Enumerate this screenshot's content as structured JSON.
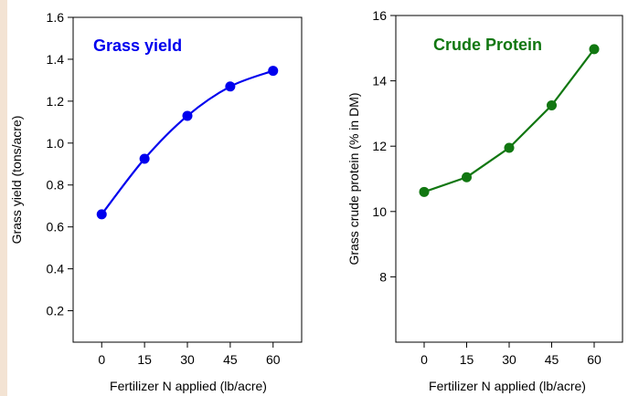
{
  "chart_data": [
    {
      "type": "line",
      "title": "Grass yield",
      "xlabel": "Fertilizer N applied (lb/acre)",
      "ylabel": "Grass yield (tons/acre)",
      "x": [
        0,
        15,
        30,
        45,
        60
      ],
      "series": [
        {
          "values": [
            0.66,
            0.925,
            1.13,
            1.27,
            1.345
          ]
        }
      ],
      "x_ticks": [
        "0",
        "15",
        "30",
        "45",
        "60"
      ],
      "xlim": [
        -10,
        70
      ],
      "y_ticks": [
        "0.2",
        "0.4",
        "0.6",
        "0.8",
        "1.0",
        "1.2",
        "1.4",
        "1.6"
      ],
      "ylim": [
        0.05,
        1.6
      ],
      "color": "#0000ee",
      "grid": false,
      "smooth": true
    },
    {
      "type": "line",
      "title": "Crude Protein",
      "xlabel": "Fertilizer N applied (lb/acre)",
      "ylabel": "Grass crude protein (% in DM)",
      "x": [
        0,
        15,
        30,
        45,
        60
      ],
      "series": [
        {
          "values": [
            10.6,
            11.05,
            11.95,
            13.25,
            14.97
          ]
        }
      ],
      "x_ticks": [
        "0",
        "15",
        "30",
        "45",
        "60"
      ],
      "xlim": [
        -10,
        70
      ],
      "y_ticks": [
        "8",
        "10",
        "12",
        "14",
        "16"
      ],
      "ylim": [
        6,
        16
      ],
      "color": "#117711",
      "grid": false,
      "smooth": false
    }
  ]
}
